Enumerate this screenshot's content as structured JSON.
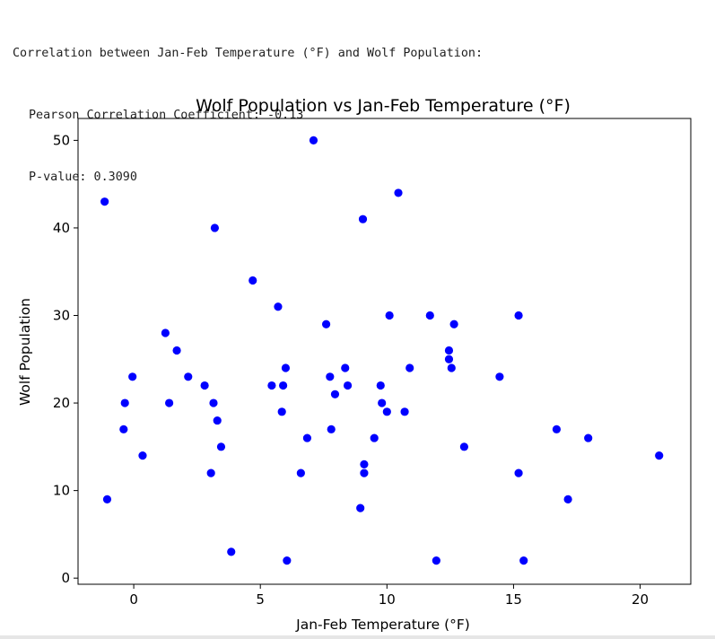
{
  "output": {
    "line1": "Correlation between Jan-Feb Temperature (°F) and Wolf Population:",
    "line2": "Pearson Correlation Coefficient: -0.13",
    "line3": "P-value: 0.3090"
  },
  "chart_data": {
    "type": "scatter",
    "title": "Wolf Population vs Jan-Feb Temperature (°F)",
    "xlabel": "Jan-Feb Temperature (°F)",
    "ylabel": "Wolf Population",
    "xlim": [
      -2.2,
      22
    ],
    "ylim": [
      -0.7,
      52.5
    ],
    "xticks": [
      0,
      5,
      10,
      15,
      20
    ],
    "yticks": [
      0,
      10,
      20,
      30,
      40,
      50
    ],
    "grid": false,
    "point_color": "#0000ff",
    "points": [
      {
        "x": -1.15,
        "y": 43
      },
      {
        "x": -1.05,
        "y": 9
      },
      {
        "x": -0.4,
        "y": 17
      },
      {
        "x": -0.35,
        "y": 20
      },
      {
        "x": -0.05,
        "y": 23
      },
      {
        "x": 0.35,
        "y": 14
      },
      {
        "x": 1.25,
        "y": 28
      },
      {
        "x": 1.4,
        "y": 20
      },
      {
        "x": 1.7,
        "y": 26
      },
      {
        "x": 2.15,
        "y": 23
      },
      {
        "x": 2.8,
        "y": 22
      },
      {
        "x": 3.05,
        "y": 12
      },
      {
        "x": 3.15,
        "y": 20
      },
      {
        "x": 3.2,
        "y": 40
      },
      {
        "x": 3.3,
        "y": 18
      },
      {
        "x": 3.45,
        "y": 15
      },
      {
        "x": 3.85,
        "y": 3
      },
      {
        "x": 4.7,
        "y": 34
      },
      {
        "x": 5.45,
        "y": 22
      },
      {
        "x": 5.7,
        "y": 31
      },
      {
        "x": 5.85,
        "y": 19
      },
      {
        "x": 5.9,
        "y": 22
      },
      {
        "x": 6.0,
        "y": 24
      },
      {
        "x": 6.05,
        "y": 2
      },
      {
        "x": 6.6,
        "y": 12
      },
      {
        "x": 6.85,
        "y": 16
      },
      {
        "x": 7.1,
        "y": 50
      },
      {
        "x": 7.6,
        "y": 29
      },
      {
        "x": 7.75,
        "y": 23
      },
      {
        "x": 7.8,
        "y": 17
      },
      {
        "x": 7.95,
        "y": 21
      },
      {
        "x": 8.35,
        "y": 24
      },
      {
        "x": 8.45,
        "y": 22
      },
      {
        "x": 8.95,
        "y": 8
      },
      {
        "x": 9.05,
        "y": 41
      },
      {
        "x": 9.1,
        "y": 12
      },
      {
        "x": 9.1,
        "y": 13
      },
      {
        "x": 9.5,
        "y": 16
      },
      {
        "x": 9.75,
        "y": 22
      },
      {
        "x": 9.8,
        "y": 20
      },
      {
        "x": 10.0,
        "y": 19
      },
      {
        "x": 10.1,
        "y": 30
      },
      {
        "x": 10.45,
        "y": 44
      },
      {
        "x": 10.7,
        "y": 19
      },
      {
        "x": 10.9,
        "y": 24
      },
      {
        "x": 11.7,
        "y": 30
      },
      {
        "x": 11.95,
        "y": 2
      },
      {
        "x": 12.45,
        "y": 26
      },
      {
        "x": 12.45,
        "y": 25
      },
      {
        "x": 12.55,
        "y": 24
      },
      {
        "x": 12.65,
        "y": 29
      },
      {
        "x": 13.05,
        "y": 15
      },
      {
        "x": 14.45,
        "y": 23
      },
      {
        "x": 15.2,
        "y": 30
      },
      {
        "x": 15.2,
        "y": 12
      },
      {
        "x": 15.4,
        "y": 2
      },
      {
        "x": 16.7,
        "y": 17
      },
      {
        "x": 17.15,
        "y": 9
      },
      {
        "x": 17.95,
        "y": 16
      },
      {
        "x": 20.75,
        "y": 14
      }
    ]
  }
}
